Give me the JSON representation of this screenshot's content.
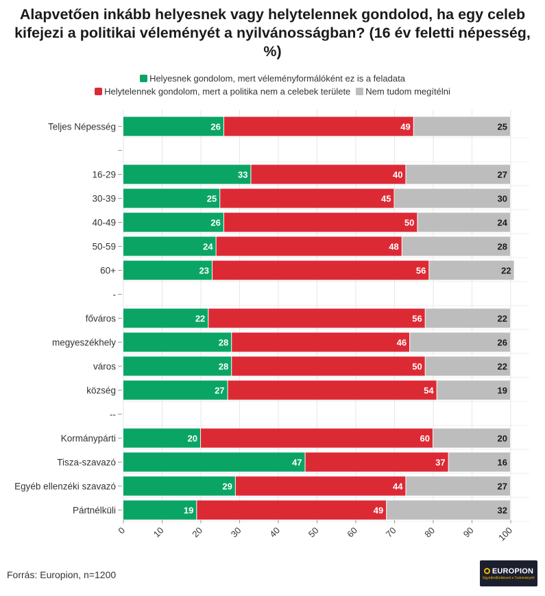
{
  "title": "Alapvetően inkább helyesnek vagy helytelennek gondolod, ha egy celeb kifejezi a politikai véleményét a nyilvánosságban? (16 év feletti népesség, %)",
  "legend": [
    {
      "label": "Helyesnek gondolom, mert véleményformálóként ez is a feladata",
      "color": "#0aa565"
    },
    {
      "label": "Helytelennek gondolom, mert a politika nem a celebek területe",
      "color": "#dc2a35"
    },
    {
      "label": "Nem tudom megítélni",
      "color": "#bdbdbd"
    }
  ],
  "chart_data": {
    "type": "bar",
    "orientation": "horizontal",
    "stacked": true,
    "categories": [
      "Teljes Népesség",
      "",
      "16-29",
      "30-39",
      "40-49",
      "50-59",
      "60+",
      "-",
      "főváros",
      "megyeszékhely",
      "város",
      "község",
      "--",
      "Kormánypárti",
      "Tisza-szavazó",
      "Egyéb ellenzéki szavazó",
      "Pártnélküli"
    ],
    "series": [
      {
        "name": "Helyesnek gondolom, mert véleményformálóként ez is a feladata",
        "color": "#0aa565",
        "values": [
          26,
          null,
          33,
          25,
          26,
          24,
          23,
          null,
          22,
          28,
          28,
          27,
          null,
          20,
          47,
          29,
          19
        ]
      },
      {
        "name": "Helytelennek gondolom, mert a politika nem a celebek területe",
        "color": "#dc2a35",
        "values": [
          49,
          null,
          40,
          45,
          50,
          48,
          56,
          null,
          56,
          46,
          50,
          54,
          null,
          60,
          37,
          44,
          49
        ]
      },
      {
        "name": "Nem tudom megítélni",
        "color": "#bdbdbd",
        "values": [
          25,
          null,
          27,
          30,
          24,
          28,
          22,
          null,
          22,
          26,
          22,
          19,
          null,
          20,
          16,
          27,
          32
        ]
      }
    ],
    "xticks": [
      0,
      10,
      20,
      30,
      40,
      50,
      60,
      70,
      80,
      90,
      100
    ],
    "xlim": [
      0,
      100
    ],
    "grid": true,
    "legend_position": "top"
  },
  "footer": {
    "source": "Forrás: Europion, n=1200",
    "logo_text": "EUROPION",
    "logo_tagline": "Együttműködéssel a Tudományért"
  }
}
